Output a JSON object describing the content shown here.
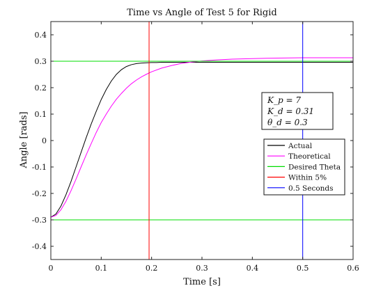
{
  "chart_data": {
    "type": "line",
    "title": "Time vs Angle of Test 5 for Rigid",
    "xlabel": "Time [s]",
    "ylabel": "Angle [rads]",
    "xlim": [
      0,
      0.6
    ],
    "ylim": [
      -0.45,
      0.45
    ],
    "xticks": [
      0,
      0.1,
      0.2,
      0.3,
      0.4,
      0.5,
      0.6
    ],
    "xtick_labels": [
      "0",
      "0.1",
      "0.2",
      "0.3",
      "0.4",
      "0.5",
      "0.6"
    ],
    "yticks": [
      -0.4,
      -0.3,
      -0.2,
      -0.1,
      0,
      0.1,
      0.2,
      0.3,
      0.4
    ],
    "ytick_labels": [
      "-0.4",
      "-0.3",
      "-0.2",
      "-0.1",
      "0",
      "0.1",
      "0.2",
      "0.3",
      "0.4"
    ],
    "grid": false,
    "legend_position": "right",
    "series": [
      {
        "name": "Actual",
        "color": "#000000",
        "style": "solid",
        "x": [
          0,
          0.01,
          0.02,
          0.03,
          0.04,
          0.05,
          0.06,
          0.07,
          0.08,
          0.09,
          0.1,
          0.11,
          0.12,
          0.13,
          0.14,
          0.15,
          0.16,
          0.17,
          0.18,
          0.19,
          0.2,
          0.21,
          0.22,
          0.24,
          0.26,
          0.3,
          0.35,
          0.4,
          0.45,
          0.5,
          0.55,
          0.6
        ],
        "y": [
          -0.29,
          -0.278,
          -0.248,
          -0.205,
          -0.155,
          -0.1,
          -0.045,
          0.01,
          0.062,
          0.11,
          0.155,
          0.193,
          0.225,
          0.25,
          0.268,
          0.28,
          0.287,
          0.291,
          0.293,
          0.294,
          0.295,
          0.295,
          0.296,
          0.296,
          0.296,
          0.296,
          0.296,
          0.296,
          0.296,
          0.296,
          0.296,
          0.296
        ]
      },
      {
        "name": "Theoretical",
        "color": "#ff00ff",
        "style": "solid",
        "x": [
          0,
          0.01,
          0.02,
          0.03,
          0.04,
          0.05,
          0.06,
          0.07,
          0.08,
          0.09,
          0.1,
          0.11,
          0.12,
          0.13,
          0.14,
          0.15,
          0.16,
          0.17,
          0.18,
          0.19,
          0.2,
          0.22,
          0.24,
          0.26,
          0.28,
          0.3,
          0.33,
          0.36,
          0.4,
          0.45,
          0.5,
          0.55,
          0.6
        ],
        "y": [
          -0.29,
          -0.283,
          -0.262,
          -0.23,
          -0.19,
          -0.146,
          -0.1,
          -0.055,
          -0.012,
          0.03,
          0.068,
          0.1,
          0.13,
          0.156,
          0.178,
          0.198,
          0.215,
          0.229,
          0.241,
          0.251,
          0.26,
          0.274,
          0.284,
          0.292,
          0.297,
          0.301,
          0.305,
          0.308,
          0.31,
          0.312,
          0.313,
          0.313,
          0.313
        ]
      },
      {
        "name": "Desired Theta",
        "color": "#00dd00",
        "style": "horizontal",
        "y_values": [
          0.3,
          -0.3
        ]
      },
      {
        "name": "Within 5%",
        "color": "#ff0000",
        "style": "vertical",
        "x_value": 0.195
      },
      {
        "name": "0.5 Seconds",
        "color": "#0000ff",
        "style": "vertical",
        "x_value": 0.5
      }
    ],
    "annotations": [
      "K_p = 7",
      "K_d = 0.31",
      "θ_d = 0.3"
    ]
  }
}
